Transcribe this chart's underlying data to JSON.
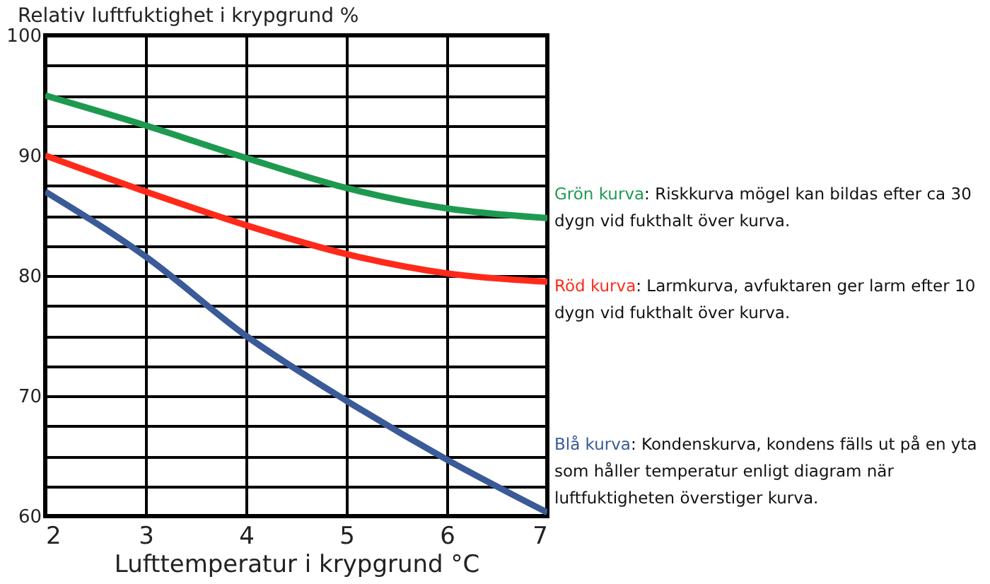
{
  "chart_data": {
    "type": "line",
    "ylabel": "Relativ luftfuktighet i krypgrund %",
    "xlabel": "Lufttemperatur i krypgrund °C",
    "x": [
      2,
      3,
      4,
      5,
      6,
      7
    ],
    "series": [
      {
        "color": "#1e9a50",
        "values": [
          95,
          92.5,
          89.8,
          87.3,
          85.6,
          84.8
        ]
      },
      {
        "color": "#ff2a1a",
        "values": [
          90,
          87,
          84.2,
          81.8,
          80.2,
          79.5
        ]
      },
      {
        "color": "#3a5a98",
        "values": [
          87,
          81.6,
          75,
          69.6,
          64.7,
          60.3
        ]
      }
    ],
    "xlim": [
      2,
      7
    ],
    "xticks": [
      2,
      3,
      4,
      5,
      6,
      7
    ],
    "ylim": [
      60,
      100
    ],
    "yticks": [
      60,
      {
        "value": 62.5,
        "label": null
      },
      {
        "value": 65,
        "label": null
      },
      {
        "value": 67.5,
        "label": null
      },
      70,
      {
        "value": 72.5,
        "label": null
      },
      {
        "value": 75,
        "label": null
      },
      {
        "value": 77.5,
        "label": null
      },
      80,
      {
        "value": 82.5,
        "label": null
      },
      {
        "value": 85,
        "label": null
      },
      {
        "value": 87.5,
        "label": null
      },
      90,
      {
        "value": 92.5,
        "label": null
      },
      {
        "value": 95,
        "label": null
      },
      {
        "value": 97.5,
        "label": null
      },
      100
    ],
    "grid": true,
    "legend": false,
    "marker": "none",
    "line_style": "solid",
    "annotations": [
      "Grön kurva: Riskkurva mögel kan bildas efter ca 30 dygn vid fukthalt över kurva.",
      "Röd kurva: Larmkurva, avfuktaren ger larm efter 10 dygn vid fukthalt över kurva.",
      "Blå kurva: Kondenskurva, kondens fälls ut på en yta som håller temperatur enligt diagram när luftfuktigheten överstiger kurva."
    ]
  }
}
